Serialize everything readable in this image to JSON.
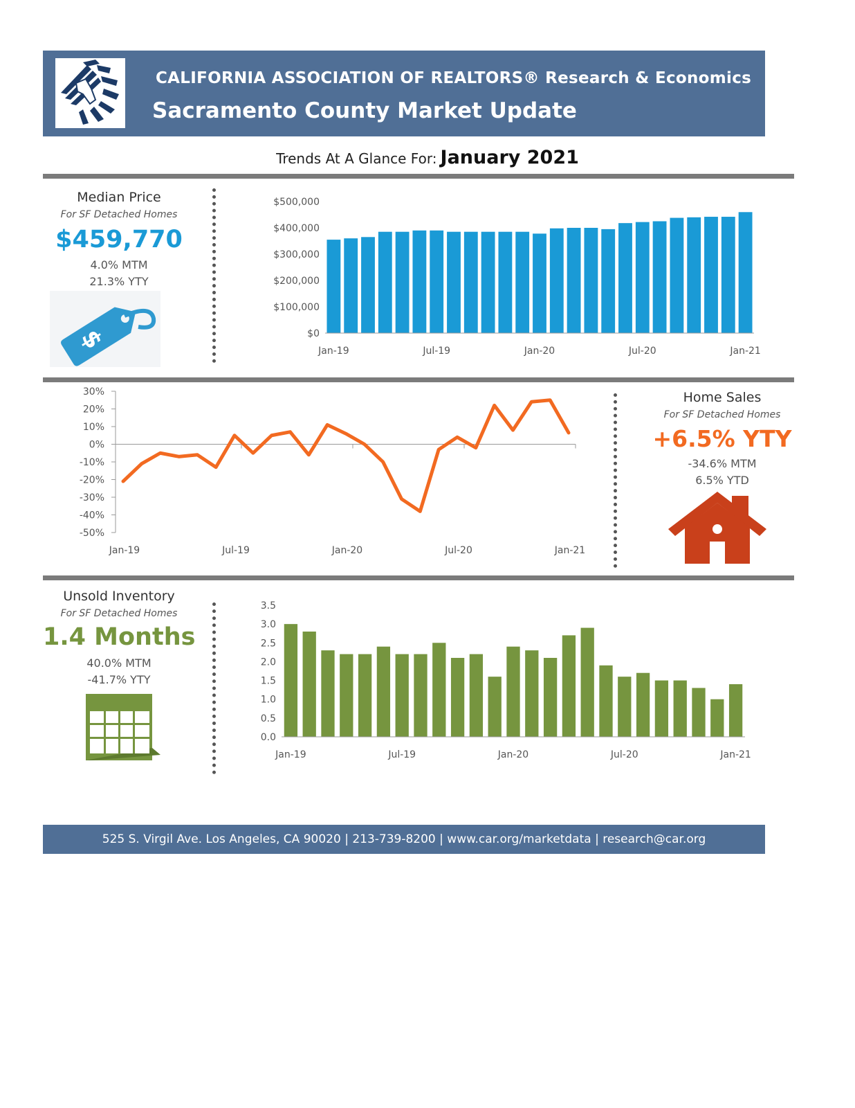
{
  "header": {
    "org": "CALIFORNIA ASSOCIATION OF REALTORS® Research & Economics",
    "title": "Sacramento County Market Update"
  },
  "trend": {
    "prefix": "Trends At A Glance For:",
    "month": "January 2021"
  },
  "median_price": {
    "title": "Median Price",
    "subtitle": "For SF Detached Homes",
    "value": "$459,770",
    "mtm": "4.0% MTM",
    "yty": "21.3% YTY",
    "icon": "price-tag-icon"
  },
  "home_sales": {
    "title": "Home Sales",
    "subtitle": "For SF Detached Homes",
    "value": "+6.5% YTY",
    "mtm": "-34.6% MTM",
    "ytd": "6.5% YTD",
    "icon": "house-icon"
  },
  "inventory": {
    "title": "Unsold Inventory",
    "subtitle": "For SF Detached Homes",
    "value": "1.4 Months",
    "mtm": "40.0% MTM",
    "yty": "-41.7% YTY",
    "icon": "calendar-icon"
  },
  "colors": {
    "header": "#506f96",
    "price": "#1a9ad6",
    "sales": "#f26a21",
    "inventory": "#76953f",
    "house": "#c9401b"
  },
  "chart_data": [
    {
      "type": "bar",
      "id": "median-price",
      "x_tick_labels": [
        "Jan-19",
        "Jul-19",
        "Jan-20",
        "Jul-20",
        "Jan-21"
      ],
      "y_tick_labels": [
        "$0",
        "$100,000",
        "$200,000",
        "$300,000",
        "$400,000",
        "$500,000"
      ],
      "ylim": [
        0,
        500000
      ],
      "values": [
        355000,
        360000,
        365000,
        385000,
        385000,
        390000,
        390000,
        385000,
        385000,
        385000,
        385000,
        385000,
        378000,
        398000,
        400000,
        400000,
        395000,
        418000,
        422000,
        425000,
        438000,
        440000,
        442000,
        442000,
        459770
      ]
    },
    {
      "type": "line",
      "id": "home-sales-yty",
      "x_tick_labels": [
        "Jan-19",
        "Jul-19",
        "Jan-20",
        "Jul-20",
        "Jan-21"
      ],
      "y_tick_labels": [
        "30%",
        "20%",
        "10%",
        "0%",
        "-10%",
        "-20%",
        "-30%",
        "-40%",
        "-50%"
      ],
      "ylim": [
        -50,
        30
      ],
      "values": [
        -21,
        -11,
        -5,
        -7,
        -6,
        -13,
        5,
        -5,
        5,
        7,
        -6,
        11,
        6,
        0,
        -10,
        -31,
        -38,
        -3,
        4,
        -2,
        22,
        8,
        24,
        25,
        6.5
      ]
    },
    {
      "type": "bar",
      "id": "unsold-inventory",
      "x_tick_labels": [
        "Jan-19",
        "Jul-19",
        "Jan-20",
        "Jul-20",
        "Jan-21"
      ],
      "y_tick_labels": [
        "0.0",
        "0.5",
        "1.0",
        "1.5",
        "2.0",
        "2.5",
        "3.0",
        "3.5"
      ],
      "ylim": [
        0,
        3.5
      ],
      "values": [
        3.0,
        2.8,
        2.3,
        2.2,
        2.2,
        2.4,
        2.2,
        2.2,
        2.5,
        2.1,
        2.2,
        1.6,
        2.4,
        2.3,
        2.1,
        2.7,
        2.9,
        1.9,
        1.6,
        1.7,
        1.5,
        1.5,
        1.3,
        1.0,
        1.4
      ]
    }
  ],
  "footer": {
    "text": "525 S. Virgil Ave. Los Angeles, CA 90020  |  213-739-8200  |  www.car.org/marketdata |  research@car.org"
  }
}
